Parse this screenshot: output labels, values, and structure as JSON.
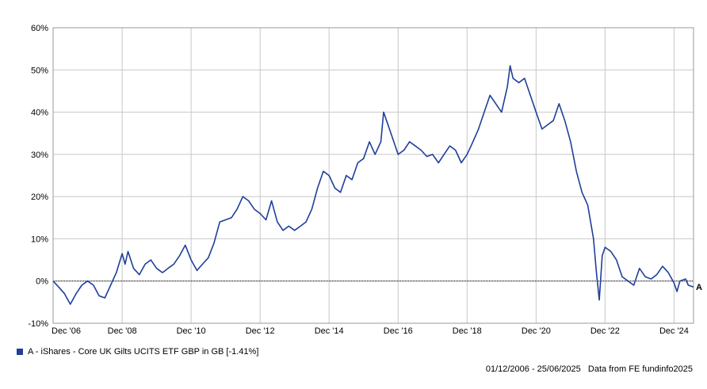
{
  "chart_data": {
    "type": "line",
    "title": "",
    "xlabel": "",
    "ylabel": "",
    "ylim": [
      -10,
      60
    ],
    "yticks": [
      -10,
      0,
      10,
      20,
      30,
      40,
      50,
      60
    ],
    "ytick_labels": [
      "-10%",
      "0%",
      "10%",
      "20%",
      "30%",
      "40%",
      "50%",
      "60%"
    ],
    "xlim": [
      "2006-12-01",
      "2025-06-25"
    ],
    "xticks": [
      "2006-12-01",
      "2008-12-01",
      "2010-12-01",
      "2012-12-01",
      "2014-12-01",
      "2016-12-01",
      "2018-12-01",
      "2020-12-01",
      "2022-12-01",
      "2024-12-01"
    ],
    "xtick_labels": [
      "Dec '06",
      "Dec '08",
      "Dec '10",
      "Dec '12",
      "Dec '14",
      "Dec '16",
      "Dec '18",
      "Dec '20",
      "Dec '22",
      "Dec '24"
    ],
    "grid": true,
    "series": [
      {
        "name": "A - iShares - Core UK Gilts UCITS ETF GBP in GB [-1.41%]",
        "label": "A",
        "color": "#1f3f99",
        "points": [
          [
            "2006-12-01",
            0
          ],
          [
            "2007-02-01",
            -1.5
          ],
          [
            "2007-04-01",
            -3
          ],
          [
            "2007-06-01",
            -5.5
          ],
          [
            "2007-08-01",
            -3
          ],
          [
            "2007-10-01",
            -1
          ],
          [
            "2007-12-01",
            0
          ],
          [
            "2008-02-01",
            -1
          ],
          [
            "2008-04-01",
            -3.5
          ],
          [
            "2008-06-01",
            -4
          ],
          [
            "2008-08-01",
            -1
          ],
          [
            "2008-10-01",
            2
          ],
          [
            "2008-12-01",
            6.5
          ],
          [
            "2009-01-01",
            4
          ],
          [
            "2009-02-01",
            7
          ],
          [
            "2009-04-01",
            3
          ],
          [
            "2009-06-01",
            1.5
          ],
          [
            "2009-08-01",
            4
          ],
          [
            "2009-10-01",
            5
          ],
          [
            "2009-12-01",
            3
          ],
          [
            "2010-02-01",
            2
          ],
          [
            "2010-04-01",
            3
          ],
          [
            "2010-06-01",
            4
          ],
          [
            "2010-08-01",
            6
          ],
          [
            "2010-10-01",
            8.5
          ],
          [
            "2010-12-01",
            5
          ],
          [
            "2011-02-01",
            2.5
          ],
          [
            "2011-04-01",
            4
          ],
          [
            "2011-06-01",
            5.5
          ],
          [
            "2011-08-01",
            9
          ],
          [
            "2011-10-01",
            14
          ],
          [
            "2011-12-01",
            14.5
          ],
          [
            "2012-02-01",
            15
          ],
          [
            "2012-04-01",
            17
          ],
          [
            "2012-06-01",
            20
          ],
          [
            "2012-08-01",
            19
          ],
          [
            "2012-10-01",
            17
          ],
          [
            "2012-12-01",
            16
          ],
          [
            "2013-02-01",
            14.5
          ],
          [
            "2013-04-01",
            19
          ],
          [
            "2013-06-01",
            14
          ],
          [
            "2013-08-01",
            12
          ],
          [
            "2013-10-01",
            13
          ],
          [
            "2013-12-01",
            12
          ],
          [
            "2014-02-01",
            13
          ],
          [
            "2014-04-01",
            14
          ],
          [
            "2014-06-01",
            17
          ],
          [
            "2014-08-01",
            22
          ],
          [
            "2014-10-01",
            26
          ],
          [
            "2014-12-01",
            25
          ],
          [
            "2015-02-01",
            22
          ],
          [
            "2015-04-01",
            21
          ],
          [
            "2015-06-01",
            25
          ],
          [
            "2015-08-01",
            24
          ],
          [
            "2015-10-01",
            28
          ],
          [
            "2015-12-01",
            29
          ],
          [
            "2016-02-01",
            33
          ],
          [
            "2016-04-01",
            30
          ],
          [
            "2016-06-01",
            33
          ],
          [
            "2016-07-01",
            40
          ],
          [
            "2016-08-01",
            38
          ],
          [
            "2016-10-01",
            34
          ],
          [
            "2016-12-01",
            30
          ],
          [
            "2017-02-01",
            31
          ],
          [
            "2017-04-01",
            33
          ],
          [
            "2017-06-01",
            32
          ],
          [
            "2017-08-01",
            31
          ],
          [
            "2017-10-01",
            29.5
          ],
          [
            "2017-12-01",
            30
          ],
          [
            "2018-02-01",
            28
          ],
          [
            "2018-04-01",
            30
          ],
          [
            "2018-06-01",
            32
          ],
          [
            "2018-08-01",
            31
          ],
          [
            "2018-10-01",
            28
          ],
          [
            "2018-12-01",
            30
          ],
          [
            "2019-02-01",
            33
          ],
          [
            "2019-04-01",
            36
          ],
          [
            "2019-06-01",
            40
          ],
          [
            "2019-08-01",
            44
          ],
          [
            "2019-10-01",
            42
          ],
          [
            "2019-12-01",
            40
          ],
          [
            "2020-02-01",
            46
          ],
          [
            "2020-03-01",
            51
          ],
          [
            "2020-04-01",
            48
          ],
          [
            "2020-06-01",
            47
          ],
          [
            "2020-08-01",
            48
          ],
          [
            "2020-10-01",
            44
          ],
          [
            "2020-12-01",
            40
          ],
          [
            "2021-02-01",
            36
          ],
          [
            "2021-04-01",
            37
          ],
          [
            "2021-06-01",
            38
          ],
          [
            "2021-08-01",
            42
          ],
          [
            "2021-10-01",
            38
          ],
          [
            "2021-12-01",
            33
          ],
          [
            "2022-02-01",
            26
          ],
          [
            "2022-04-01",
            21
          ],
          [
            "2022-06-01",
            18
          ],
          [
            "2022-08-01",
            10
          ],
          [
            "2022-09-01",
            2
          ],
          [
            "2022-10-01",
            -4.5
          ],
          [
            "2022-11-01",
            6
          ],
          [
            "2022-12-01",
            8
          ],
          [
            "2023-02-01",
            7
          ],
          [
            "2023-04-01",
            5
          ],
          [
            "2023-06-01",
            1
          ],
          [
            "2023-08-01",
            0
          ],
          [
            "2023-10-01",
            -1
          ],
          [
            "2023-12-01",
            3
          ],
          [
            "2024-02-01",
            1
          ],
          [
            "2024-04-01",
            0.5
          ],
          [
            "2024-06-01",
            1.5
          ],
          [
            "2024-08-01",
            3.5
          ],
          [
            "2024-10-01",
            2
          ],
          [
            "2024-12-01",
            -0.5
          ],
          [
            "2025-01-01",
            -2.5
          ],
          [
            "2025-02-01",
            0
          ],
          [
            "2025-04-01",
            0.5
          ],
          [
            "2025-05-01",
            -1
          ],
          [
            "2025-06-25",
            -1.41
          ]
        ]
      }
    ]
  },
  "legend": {
    "label": "A - iShares - Core UK Gilts UCITS ETF GBP in GB [-1.41%]",
    "color": "#1f3f99"
  },
  "footer": {
    "date_range": "01/12/2006 - 25/06/2025",
    "source": "Data from FE fundinfo2025"
  }
}
